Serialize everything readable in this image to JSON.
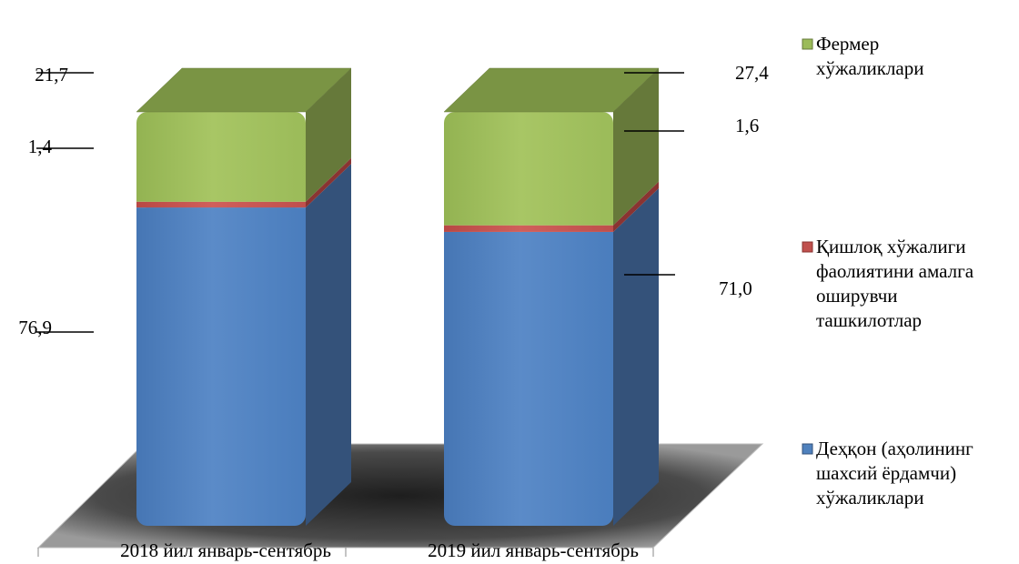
{
  "chart_data": {
    "type": "bar",
    "stacked": true,
    "three_d": true,
    "categories": [
      "2018 йил январь-сентябрь",
      "2019 йил январь-сентябрь"
    ],
    "ylim": [
      0,
      100
    ],
    "series": [
      {
        "name": "Деҳқон (аҳолининг шахсий ёрдамчи) хўжаликлари",
        "values": [
          76.9,
          71.0
        ],
        "labels": [
          "76,9",
          "71,0"
        ],
        "color": "#4f81bd",
        "side_color": "#34527a",
        "top_color": "#7fa3d4"
      },
      {
        "name": "Қишлоқ хўжалиги фаолиятини амалга оширувчи ташкилотлар",
        "values": [
          1.4,
          1.6
        ],
        "labels": [
          "1,4",
          "1,6"
        ],
        "color": "#c0504d",
        "side_color": "#8a3432",
        "top_color": "#d97b78"
      },
      {
        "name": "Фермер хўжаликлари",
        "values": [
          21.7,
          27.4
        ],
        "labels": [
          "21,7",
          "27,4"
        ],
        "color": "#9bbb59",
        "side_color": "#66793a",
        "top_color": "#7a9444"
      }
    ],
    "legend_position": "right",
    "grid": false,
    "legend_lines": [
      [
        "Фермер",
        "хўжаликлари"
      ],
      [
        "Қишлоқ хўжалиги",
        "фаолиятини амалга",
        "оширувчи",
        "ташкилотлар"
      ],
      [
        "Деҳқон (аҳолининг",
        "шахсий ёрдамчи)",
        "хўжаликлари"
      ]
    ]
  }
}
